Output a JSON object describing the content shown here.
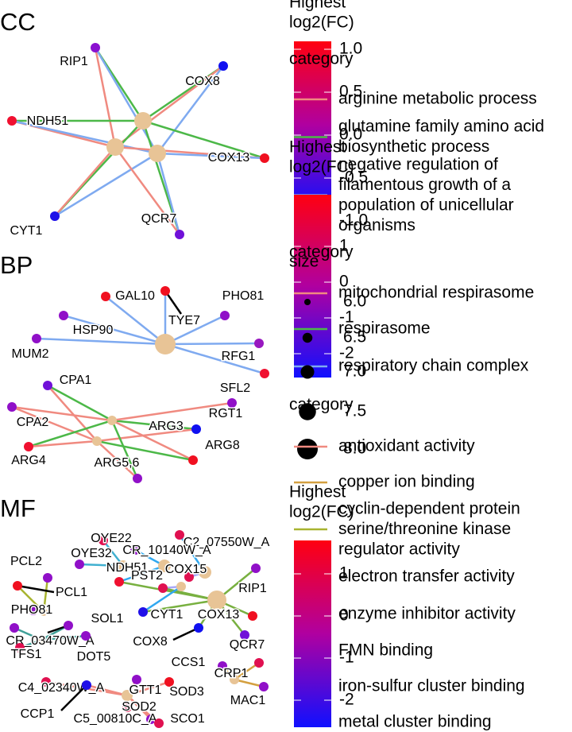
{
  "panels": [
    {
      "title": "CC",
      "genes": [
        {
          "label": "RIP1",
          "color": "#8a10d0"
        },
        {
          "label": "COX8",
          "color": "#1010f0"
        },
        {
          "label": "NDH51",
          "color": "#f01030"
        },
        {
          "label": "COX13",
          "color": "#f01020"
        },
        {
          "label": "CYT1",
          "color": "#2010e8"
        },
        {
          "label": "QCR7",
          "color": "#7010d8"
        }
      ]
    },
    {
      "title": "BP",
      "genes": [
        {
          "label": "GAL10",
          "color": "#f01020"
        },
        {
          "label": "HSP90",
          "color": "#9010c8"
        },
        {
          "label": "MUM2",
          "color": "#9010c8"
        },
        {
          "label": "TYE7",
          "color": "#f01020"
        },
        {
          "label": "PHO81",
          "color": "#9010c8"
        },
        {
          "label": "RFG1",
          "color": "#9818c0"
        },
        {
          "label": "SFL2",
          "color": "#f01030"
        },
        {
          "label": "CPA1",
          "color": "#7010d8"
        },
        {
          "label": "CPA2",
          "color": "#9010c8"
        },
        {
          "label": "ARG4",
          "color": "#f01030"
        },
        {
          "label": "ARG3",
          "color": "#1010f0"
        },
        {
          "label": "RGT1",
          "color": "#9010c8"
        },
        {
          "label": "ARG8",
          "color": "#f01020"
        },
        {
          "label": "ARG5,6",
          "color": "#9010c8"
        }
      ]
    },
    {
      "title": "MF",
      "genes": [
        {
          "label": "OYE22",
          "color": "#e01050"
        },
        {
          "label": "OYE32",
          "color": "#9010c8"
        },
        {
          "label": "C2_07550W_A",
          "color": "#e01050"
        },
        {
          "label": "CR_10140W_A",
          "color": "#9010c8"
        },
        {
          "label": "NDH51",
          "color": "#f01030"
        },
        {
          "label": "COX15",
          "color": "#e01050"
        },
        {
          "label": "PCL2",
          "color": "#9010c8"
        },
        {
          "label": "PCL1",
          "color": "#f01020"
        },
        {
          "label": "PHO81",
          "color": "#9010c8"
        },
        {
          "label": "SOL1",
          "color": "#9010c8"
        },
        {
          "label": "CR_03470W_A",
          "color": "#9010c8"
        },
        {
          "label": "TFS1",
          "color": "#e01050"
        },
        {
          "label": "DOT5",
          "color": "#9010c8"
        },
        {
          "label": "PST2",
          "color": "#e01050"
        },
        {
          "label": "RIP1",
          "color": "#9010c8"
        },
        {
          "label": "CYT1",
          "color": "#2010e8"
        },
        {
          "label": "COX13",
          "color": "#f01020"
        },
        {
          "label": "COX8",
          "color": "#1010f0"
        },
        {
          "label": "QCR7",
          "color": "#7010d8"
        },
        {
          "label": "CCS1",
          "color": "#9010c8"
        },
        {
          "label": "CRP1",
          "color": "#e01050"
        },
        {
          "label": "C4_02340W_A",
          "color": "#e01050"
        },
        {
          "label": "GTT1",
          "color": "#9010c8"
        },
        {
          "label": "SOD3",
          "color": "#f01020"
        },
        {
          "label": "MAC1",
          "color": "#9010c8"
        },
        {
          "label": "SOD2",
          "color": "#e01050"
        },
        {
          "label": "CCP1",
          "color": "#2010e8"
        },
        {
          "label": "C5_00810C_A",
          "color": "#9010c8"
        },
        {
          "label": "SCO1",
          "color": "#e01050"
        }
      ]
    }
  ],
  "colorbars": [
    {
      "title": [
        "Highest",
        "log2(FC)"
      ],
      "ticks": [
        {
          "value": 1,
          "label": "1.0"
        },
        {
          "value": 0.5,
          "label": "0.5"
        },
        {
          "value": 0,
          "label": "0.0"
        },
        {
          "value": -0.5,
          "label": "-0.5"
        },
        {
          "value": -1,
          "label": "-1.0"
        }
      ]
    },
    {
      "title": [
        "Highest",
        "log2(FC)"
      ],
      "ticks": [
        1,
        0,
        -1,
        -2
      ]
    },
    {
      "title": [
        "Highest",
        "log2(FC)"
      ],
      "ticks": [
        1,
        0,
        -1,
        -2
      ]
    }
  ],
  "category_legends": [
    {
      "title": "category",
      "items": [
        {
          "name": [
            "arginine metabolic process"
          ],
          "color": "#f08a80"
        },
        {
          "name": [
            "glutamine family amino acid",
            "biosynthetic process"
          ],
          "color": "#4cb848"
        },
        {
          "name": [
            "negative regulation of",
            "filamentous growth of a",
            "population of unicellular",
            "organisms"
          ],
          "color": "#7faaf0"
        }
      ]
    },
    {
      "title": "category",
      "items": [
        {
          "name": [
            "mitochondrial respirasome"
          ],
          "color": "#f08a80"
        },
        {
          "name": [
            "respirasome"
          ],
          "color": "#4cb848"
        },
        {
          "name": [
            "respiratory chain complex"
          ],
          "color": "#7faaf0"
        }
      ]
    },
    {
      "title": "category",
      "items": [
        {
          "name": [
            "antioxidant activity"
          ],
          "color": "#f08a80"
        },
        {
          "name": [
            "copper ion binding"
          ],
          "color": "#d4a040"
        },
        {
          "name": [
            "cyclin-dependent protein",
            "serine/threonine kinase",
            "regulator activity"
          ],
          "color": "#a8b430"
        },
        {
          "name": [
            "electron transfer activity"
          ],
          "color": "#78b040"
        },
        {
          "name": [
            "enzyme inhibitor activity"
          ],
          "color": "#40a098"
        },
        {
          "name": [
            "FMN binding"
          ],
          "color": "#40b0d0"
        },
        {
          "name": [
            "iron-sulfur cluster binding"
          ],
          "color": "#30a8f0"
        },
        {
          "name": [
            "metal cluster binding"
          ],
          "color": "#a8a8f8"
        }
      ]
    }
  ],
  "size_legend": {
    "title": "size",
    "ticks": [
      {
        "value": 6,
        "label": "6.0"
      },
      {
        "value": 6.5,
        "label": "6.5"
      },
      {
        "value": 7,
        "label": "7.0"
      },
      {
        "value": 7.5,
        "label": "7.5"
      },
      {
        "value": 8,
        "label": "8.0"
      }
    ]
  }
}
